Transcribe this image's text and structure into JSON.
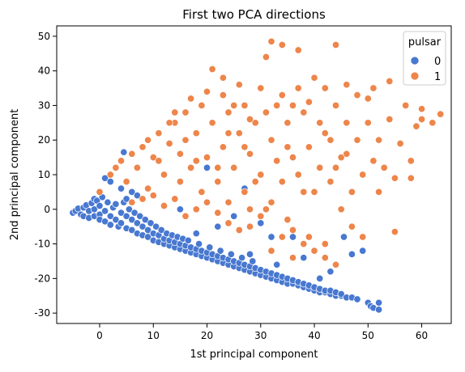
{
  "chart_data": {
    "type": "scatter",
    "title": "First two PCA directions",
    "xlabel": "1st principal component",
    "ylabel": "2nd principal component",
    "xlim": [
      -8,
      65.5
    ],
    "ylim": [
      -33,
      53
    ],
    "xticks": [
      0,
      10,
      20,
      30,
      40,
      50,
      60
    ],
    "yticks": [
      -30,
      -20,
      -10,
      0,
      10,
      20,
      30,
      40,
      50
    ],
    "grid": false,
    "legend": {
      "title": "pulsar",
      "placement": "top-right",
      "entries": [
        {
          "label": "0",
          "color": "#4878d0"
        },
        {
          "label": "1",
          "color": "#ee854a"
        }
      ]
    },
    "series": [
      {
        "name": "0",
        "color": "#4878d0",
        "points": [
          [
            -5,
            -1
          ],
          [
            -4.5,
            -0.5
          ],
          [
            -4,
            0.2
          ],
          [
            -3.5,
            -1.5
          ],
          [
            -3,
            0.5
          ],
          [
            -3,
            -2
          ],
          [
            -2.5,
            1.2
          ],
          [
            -2,
            -0.5
          ],
          [
            -2,
            -2.5
          ],
          [
            -1.5,
            1.8
          ],
          [
            -1,
            0
          ],
          [
            -1,
            -2
          ],
          [
            -1,
            3
          ],
          [
            -0.5,
            2.5
          ],
          [
            0,
            -1.5
          ],
          [
            0,
            1
          ],
          [
            0,
            -3
          ],
          [
            0.5,
            3.5
          ],
          [
            1,
            -0.5
          ],
          [
            1,
            -3.5
          ],
          [
            1.5,
            2
          ],
          [
            2,
            -2
          ],
          [
            2,
            -4.5
          ],
          [
            2.5,
            0.5
          ],
          [
            3,
            -3
          ],
          [
            3,
            1.5
          ],
          [
            3.5,
            -5
          ],
          [
            4,
            -1
          ],
          [
            4,
            -4
          ],
          [
            4.5,
            2
          ],
          [
            5,
            -5.5
          ],
          [
            5,
            -2
          ],
          [
            5.5,
            0
          ],
          [
            6,
            -6
          ],
          [
            6,
            -3
          ],
          [
            6.5,
            -1
          ],
          [
            7,
            -7
          ],
          [
            7,
            -4
          ],
          [
            7.5,
            -2
          ],
          [
            8,
            -7.5
          ],
          [
            8,
            -5
          ],
          [
            8.5,
            -3
          ],
          [
            9,
            -8
          ],
          [
            9,
            -6
          ],
          [
            9.5,
            -4
          ],
          [
            10,
            -9
          ],
          [
            10,
            -7
          ],
          [
            10.5,
            -5
          ],
          [
            11,
            -9.5
          ],
          [
            11,
            -7.5
          ],
          [
            11.5,
            -6
          ],
          [
            12,
            -10
          ],
          [
            12,
            -8.5
          ],
          [
            12.5,
            -7
          ],
          [
            13,
            -10.5
          ],
          [
            13,
            -9
          ],
          [
            13.5,
            -7.5
          ],
          [
            14,
            -11
          ],
          [
            14,
            -9.5
          ],
          [
            14.5,
            -8
          ],
          [
            15,
            -11.5
          ],
          [
            15,
            -10
          ],
          [
            15.5,
            -8.5
          ],
          [
            16,
            -12
          ],
          [
            16,
            -10.5
          ],
          [
            16.5,
            -9
          ],
          [
            17,
            -12.5
          ],
          [
            17,
            -11
          ],
          [
            18,
            -13
          ],
          [
            18,
            -11.5
          ],
          [
            18.5,
            -10
          ],
          [
            19,
            -13.5
          ],
          [
            19,
            -12
          ],
          [
            20,
            -14
          ],
          [
            20,
            -12.5
          ],
          [
            20.5,
            -11
          ],
          [
            21,
            -14.5
          ],
          [
            21,
            -13
          ],
          [
            22,
            -15
          ],
          [
            22,
            -13.5
          ],
          [
            22.5,
            -12
          ],
          [
            23,
            -15.5
          ],
          [
            23,
            -14
          ],
          [
            24,
            -16
          ],
          [
            24,
            -14.5
          ],
          [
            24.5,
            -13
          ],
          [
            25,
            -16.5
          ],
          [
            25,
            -15
          ],
          [
            26,
            -17
          ],
          [
            26,
            -15.5
          ],
          [
            26.5,
            -14
          ],
          [
            27,
            -17.5
          ],
          [
            27,
            -16
          ],
          [
            28,
            -18
          ],
          [
            28,
            -16.5
          ],
          [
            28.5,
            -15
          ],
          [
            29,
            -18.5
          ],
          [
            29,
            -17
          ],
          [
            30,
            -19
          ],
          [
            30,
            -17.5
          ],
          [
            31,
            -19.5
          ],
          [
            31,
            -18
          ],
          [
            32,
            -20
          ],
          [
            32,
            -18.5
          ],
          [
            33,
            -20.5
          ],
          [
            33,
            -19
          ],
          [
            34,
            -21
          ],
          [
            34,
            -19.5
          ],
          [
            35,
            -21.5
          ],
          [
            35,
            -20
          ],
          [
            36,
            -21.5
          ],
          [
            36,
            -20.5
          ],
          [
            37,
            -22
          ],
          [
            37,
            -21
          ],
          [
            38,
            -22.5
          ],
          [
            38,
            -21.5
          ],
          [
            39,
            -23
          ],
          [
            39,
            -22
          ],
          [
            40,
            -23.5
          ],
          [
            40,
            -22.5
          ],
          [
            41,
            -24
          ],
          [
            41,
            -23
          ],
          [
            42,
            -24
          ],
          [
            42,
            -23.5
          ],
          [
            43,
            -24.5
          ],
          [
            43,
            -23.5
          ],
          [
            44,
            -25
          ],
          [
            44,
            -24
          ],
          [
            45,
            -25
          ],
          [
            45,
            -24.5
          ],
          [
            46,
            -25.5
          ],
          [
            47,
            -25.5
          ],
          [
            48,
            -26
          ],
          [
            50,
            -27
          ],
          [
            50.5,
            -28
          ],
          [
            51,
            -28.5
          ],
          [
            52,
            -27
          ],
          [
            52,
            -29
          ],
          [
            1,
            9
          ],
          [
            2,
            8
          ],
          [
            4.5,
            16.5
          ],
          [
            4,
            6
          ],
          [
            6,
            5
          ],
          [
            5,
            3
          ],
          [
            7,
            4
          ],
          [
            20,
            12
          ],
          [
            27,
            6
          ],
          [
            25,
            -2
          ],
          [
            30,
            -4
          ],
          [
            32,
            -8
          ],
          [
            36,
            -8
          ],
          [
            45.5,
            -8
          ],
          [
            47,
            -13
          ],
          [
            49,
            -12
          ],
          [
            41,
            -20
          ],
          [
            33,
            -16
          ],
          [
            28,
            -13
          ],
          [
            18,
            -7
          ],
          [
            15,
            0
          ],
          [
            22,
            -5
          ],
          [
            38,
            -14
          ],
          [
            43,
            -18
          ]
        ]
      },
      {
        "name": "1",
        "color": "#ee854a",
        "points": [
          [
            0,
            5
          ],
          [
            2,
            10
          ],
          [
            4,
            14
          ],
          [
            5,
            8
          ],
          [
            7,
            12
          ],
          [
            8,
            18
          ],
          [
            9,
            6
          ],
          [
            10,
            15
          ],
          [
            11,
            22
          ],
          [
            12,
            10
          ],
          [
            13,
            19
          ],
          [
            14,
            25
          ],
          [
            15,
            8
          ],
          [
            15,
            16
          ],
          [
            16,
            28
          ],
          [
            17,
            12
          ],
          [
            18,
            22
          ],
          [
            19,
            5
          ],
          [
            19,
            30
          ],
          [
            20,
            15
          ],
          [
            21,
            25
          ],
          [
            21,
            40.5
          ],
          [
            22,
            8
          ],
          [
            23,
            18
          ],
          [
            23,
            33
          ],
          [
            24,
            2
          ],
          [
            24,
            28
          ],
          [
            25,
            12
          ],
          [
            26,
            22
          ],
          [
            26,
            36
          ],
          [
            27,
            5
          ],
          [
            27,
            30
          ],
          [
            28,
            16
          ],
          [
            28,
            -5
          ],
          [
            29,
            25
          ],
          [
            30,
            10
          ],
          [
            30,
            35
          ],
          [
            31,
            0
          ],
          [
            31,
            44
          ],
          [
            32,
            48.5
          ],
          [
            32,
            20
          ],
          [
            33,
            30
          ],
          [
            34,
            47.5
          ],
          [
            34,
            8
          ],
          [
            35,
            25
          ],
          [
            35,
            -3
          ],
          [
            36,
            15
          ],
          [
            37,
            35
          ],
          [
            37,
            46
          ],
          [
            38,
            5
          ],
          [
            38,
            28
          ],
          [
            39,
            18
          ],
          [
            39,
            -8
          ],
          [
            40,
            38
          ],
          [
            41,
            12
          ],
          [
            41,
            25
          ],
          [
            42,
            35
          ],
          [
            42,
            -10
          ],
          [
            43,
            8
          ],
          [
            43,
            20
          ],
          [
            44,
            47.5
          ],
          [
            44,
            30
          ],
          [
            45,
            15
          ],
          [
            45,
            0
          ],
          [
            46,
            36
          ],
          [
            46,
            25
          ],
          [
            47,
            5
          ],
          [
            47,
            -5
          ],
          [
            48,
            20
          ],
          [
            48,
            33
          ],
          [
            49,
            10
          ],
          [
            49,
            -8
          ],
          [
            50,
            25
          ],
          [
            50,
            32
          ],
          [
            51,
            14
          ],
          [
            51,
            35
          ],
          [
            52,
            20
          ],
          [
            52,
            5
          ],
          [
            53,
            12
          ],
          [
            54,
            37
          ],
          [
            54,
            26
          ],
          [
            55,
            9
          ],
          [
            55,
            -6.5
          ],
          [
            56,
            19
          ],
          [
            57,
            30
          ],
          [
            58,
            14
          ],
          [
            58,
            9
          ],
          [
            59,
            24
          ],
          [
            60,
            29
          ],
          [
            60,
            26
          ],
          [
            62,
            25
          ],
          [
            63.5,
            27.5
          ],
          [
            6,
            2
          ],
          [
            8,
            3
          ],
          [
            10,
            4
          ],
          [
            12,
            1
          ],
          [
            14,
            3
          ],
          [
            16,
            -2
          ],
          [
            18,
            0
          ],
          [
            20,
            2
          ],
          [
            22,
            -1
          ],
          [
            24,
            -4
          ],
          [
            26,
            -6
          ],
          [
            28,
            0
          ],
          [
            30,
            -2
          ],
          [
            32,
            2
          ],
          [
            34,
            -8
          ],
          [
            36,
            -6
          ],
          [
            38,
            -10
          ],
          [
            40,
            -12
          ],
          [
            42,
            -14
          ],
          [
            44,
            -16
          ],
          [
            36,
            -14
          ],
          [
            32,
            -12
          ],
          [
            3,
            12
          ],
          [
            6,
            16
          ],
          [
            9,
            20
          ],
          [
            11,
            14
          ],
          [
            13,
            25
          ],
          [
            16,
            20
          ],
          [
            18,
            14
          ],
          [
            22,
            12
          ],
          [
            24,
            22
          ],
          [
            27,
            18
          ],
          [
            29,
            8
          ],
          [
            33,
            14
          ],
          [
            35,
            18
          ],
          [
            37,
            10
          ],
          [
            40,
            5
          ],
          [
            42,
            22
          ],
          [
            44,
            12
          ],
          [
            46,
            16
          ],
          [
            14,
            28
          ],
          [
            17,
            32
          ],
          [
            20,
            34
          ],
          [
            23,
            38
          ],
          [
            25,
            30
          ],
          [
            28,
            26
          ],
          [
            31,
            28
          ],
          [
            34,
            33
          ],
          [
            36,
            30
          ],
          [
            39,
            31
          ]
        ]
      }
    ]
  }
}
